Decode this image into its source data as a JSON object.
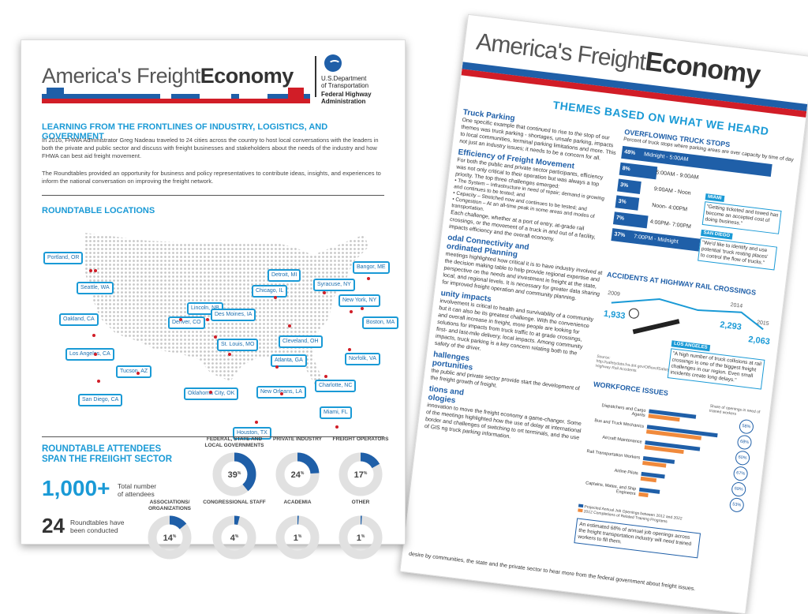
{
  "front": {
    "title_light": "America's Freight",
    "title_bold": "Economy",
    "dot_name_1": "U.S.Department",
    "dot_name_2": "of Transportation",
    "fhwa_1": "Federal Highway",
    "fhwa_2": "Administration",
    "heading": "LEARNING FROM THE FRONTLINES OF INDUSTRY, LOGISTICS, AND GOVERNMENT",
    "para1": "In 2016, FHWA Administrator Greg Nadeau traveled to 24 cities across the country to host local conversations with the leaders in both the private and public sector and discuss with freight businesses and stakeholders about the needs of the industry and how FHWA can best aid freight movement.",
    "para2": "The Roundtables provided an opportunity for business and policy representatives to contribute ideas, insights, and experiences to inform the national conversation on improving the freight network.",
    "locations_heading": "ROUNDTABLE LOCATIONS",
    "cities": [
      "Portland, OR",
      "Seattle, WA",
      "Oakland, CA",
      "Los Angeles, CA",
      "San Diego, CA",
      "Tucson, AZ",
      "Denver, CO",
      "Lincoln, NB",
      "Des Moines, IA",
      "Detroit, MI",
      "Chicago, IL",
      "Syracuse, NY",
      "Bangor, ME",
      "New York, NY",
      "Boston, MA",
      "Cleveland, OH",
      "St. Louis, MO",
      "Atlanta, GA",
      "Norfolk, VA",
      "Charlotte, NC",
      "Oklahoma City, OK",
      "New Orleans, LA",
      "Miami, FL",
      "Houston, TX"
    ],
    "attendees_heading_1": "ROUNDTABLE ATTENDEES",
    "attendees_heading_2": "SPAN THE FREIIGHT SECTOR",
    "big_number": "1,000+",
    "big_number_caption_1": "Total number",
    "big_number_caption_2": "of attendees",
    "roundtables_number": "24",
    "roundtables_caption_1": "Roundtables have",
    "roundtables_caption_2": "been conducted",
    "donuts": [
      {
        "label": "FEDERAL, STATE AND LOCAL GOVERNMENTS",
        "value": 39,
        "text": "39"
      },
      {
        "label": "PRIVATE INDUSTRY",
        "value": 24,
        "text": "24"
      },
      {
        "label": "FREIGHT OPERATORS",
        "value": 17,
        "text": "17"
      },
      {
        "label": "ASSOCIATIONS/ ORGANIZATIONS",
        "value": 14,
        "text": "14"
      },
      {
        "label": "CONGRESSIONAL STAFF",
        "value": 4,
        "text": "4"
      },
      {
        "label": "ACADEMIA",
        "value": 1,
        "text": "1"
      },
      {
        "label": "OTHER",
        "value": 1,
        "text": "1"
      }
    ],
    "pct": "%",
    "colors": {
      "teal": "#1a9ad6",
      "navy": "#1f5fa8",
      "red": "#d11d27"
    }
  },
  "back": {
    "title_light": "America's Freight",
    "title_bold": "Economy",
    "themes_heading": "THEMES BASED ON WHAT WE HEARD",
    "truck_parking_h": "Truck Parking",
    "truck_parking_p": "One specific example that continued to rise to the stop of our themes was truck parking - shortages, unsafe parking, impacts to local communities, terminal parking limitations and more. This not just an industry issues; it needs to be a concern for all.",
    "efficiency_h": "Efficiency of Freight Movement",
    "efficiency_p": "For both the public and private sector participants, efficiency was not only critical to their operation but was always a top priority. The top three challenges emerged:",
    "bullets": [
      "The System – Infrastructure in need of repair; demand is growing and continues to be tested; and",
      "Capacity – Stretched now and continues to be tested; and",
      "Congestion – At an all-time peak in some areas and modes of transportation."
    ],
    "efficiency_p2": "Each challenge, whether at a port of entry, at-grade rail crossings, or the movement of a truck in and out of a facility, impacts efficiency and the overall economy.",
    "modal_h1": "odal Connectivity and",
    "modal_h2": "ordinated Planning",
    "modal_p": "meetings highlighted how critical it is to have industry involved at the decision making table to help provide regional expertise and perspective on the needs and investment in freight at the state, local, and regional levels. It is necessary for greater data sharing for improved freight operation and community planning.",
    "community_h": "unity impacts",
    "community_p": "involvement is critical to health and survivability of a community but it can also be its greatest challenge. With the convenience and overall increase in freight, more people are looking for solutions for impacts from truck traffic to at grade crossings, first- and last-mile delivery, local impacts. Among community impacts, truck parking is a key concern relating both to the safety of the driver.",
    "challenges_h1": "hallenges",
    "challenges_h2": "portunities",
    "challenges_p": "the public and private sector provide start the development of the freight growth of freight.",
    "tech_h1": "tions and",
    "tech_h2": "ologies",
    "tech_p": "innovation to move the freight economy a game-changer. Some of the meetings highlighted how the use of delay at international border and challenges of switching to ort terminals, and the use of GIS ng truck parking information.",
    "footer": "desire by communities, the state and the private sector to hear more from the federal government about freight issues.",
    "stops_h": "OVERFLOWING TRUCK STOPS",
    "stops_sub": "Percent of truck stops where parking areas are over capacity by time of day",
    "stops": [
      {
        "pct": "48%",
        "time": "Midnight - 5:00AM",
        "value": 48
      },
      {
        "pct": "8%",
        "time": "5:00AM - 9:00AM",
        "value": 8
      },
      {
        "pct": "3%",
        "time": "9:00AM - Noon",
        "value": 3
      },
      {
        "pct": "3%",
        "time": "Noon- 4:00PM",
        "value": 3
      },
      {
        "pct": "7%",
        "time": "4:00PM- 7:00PM",
        "value": 7
      },
      {
        "pct": "37%",
        "time": "7:00PM - Midnight",
        "value": 37
      }
    ],
    "miami_tag": "MIAMI",
    "miami_quote": "\"Getting ticketed and towed has become an accepted cost of doing business.\"",
    "sandiego_tag": "SAN DIEGO",
    "sandiego_quote": "\"We'd like to identify and use potential 'truck resting places' to control the flow of trucks.\"",
    "accidents_h": "ACCIDENTS AT HIGHWAY RAIL CROSSINGS",
    "acc_years": [
      "2009",
      "2014",
      "2015"
    ],
    "acc_values": [
      "1,933",
      "2,293",
      "2,063"
    ],
    "la_tag": "LOS ANGELES",
    "la_quote": "\"A high number of truck collisions at rail crossings is one of the biggest freight challenges in our region. Even small incidents create long delays.\"",
    "acc_source": "Source: http://safetydata.fra.dot.gov/OfficeofSafety/publicsite/on_the_fly_download.aspx, Highway Rail Accidents",
    "workforce_h": "WORKFORCE ISSUES",
    "workforce_share_h": "Share of openings in need of trained workers",
    "workforce_rows": [
      "Dispatchers and Cargo Agents",
      "Bus and Truck Mechanics",
      "Aircraft Maintenance",
      "Rail Transportation Workers",
      "Airline Pilots",
      "Captains, Mates, and Ship Engineers"
    ],
    "workforce_pcts": [
      "58%",
      "68%",
      "60%",
      "67%",
      "69%",
      "53%"
    ],
    "legend_1": "Projected Annual Job Openings between 2012 and 2022",
    "legend_2": "2012 Completions of Related Training Programs",
    "workforce_note": "An estimated 68% of annual job openings across the freight transportation industry will need trained workers to fill them."
  }
}
